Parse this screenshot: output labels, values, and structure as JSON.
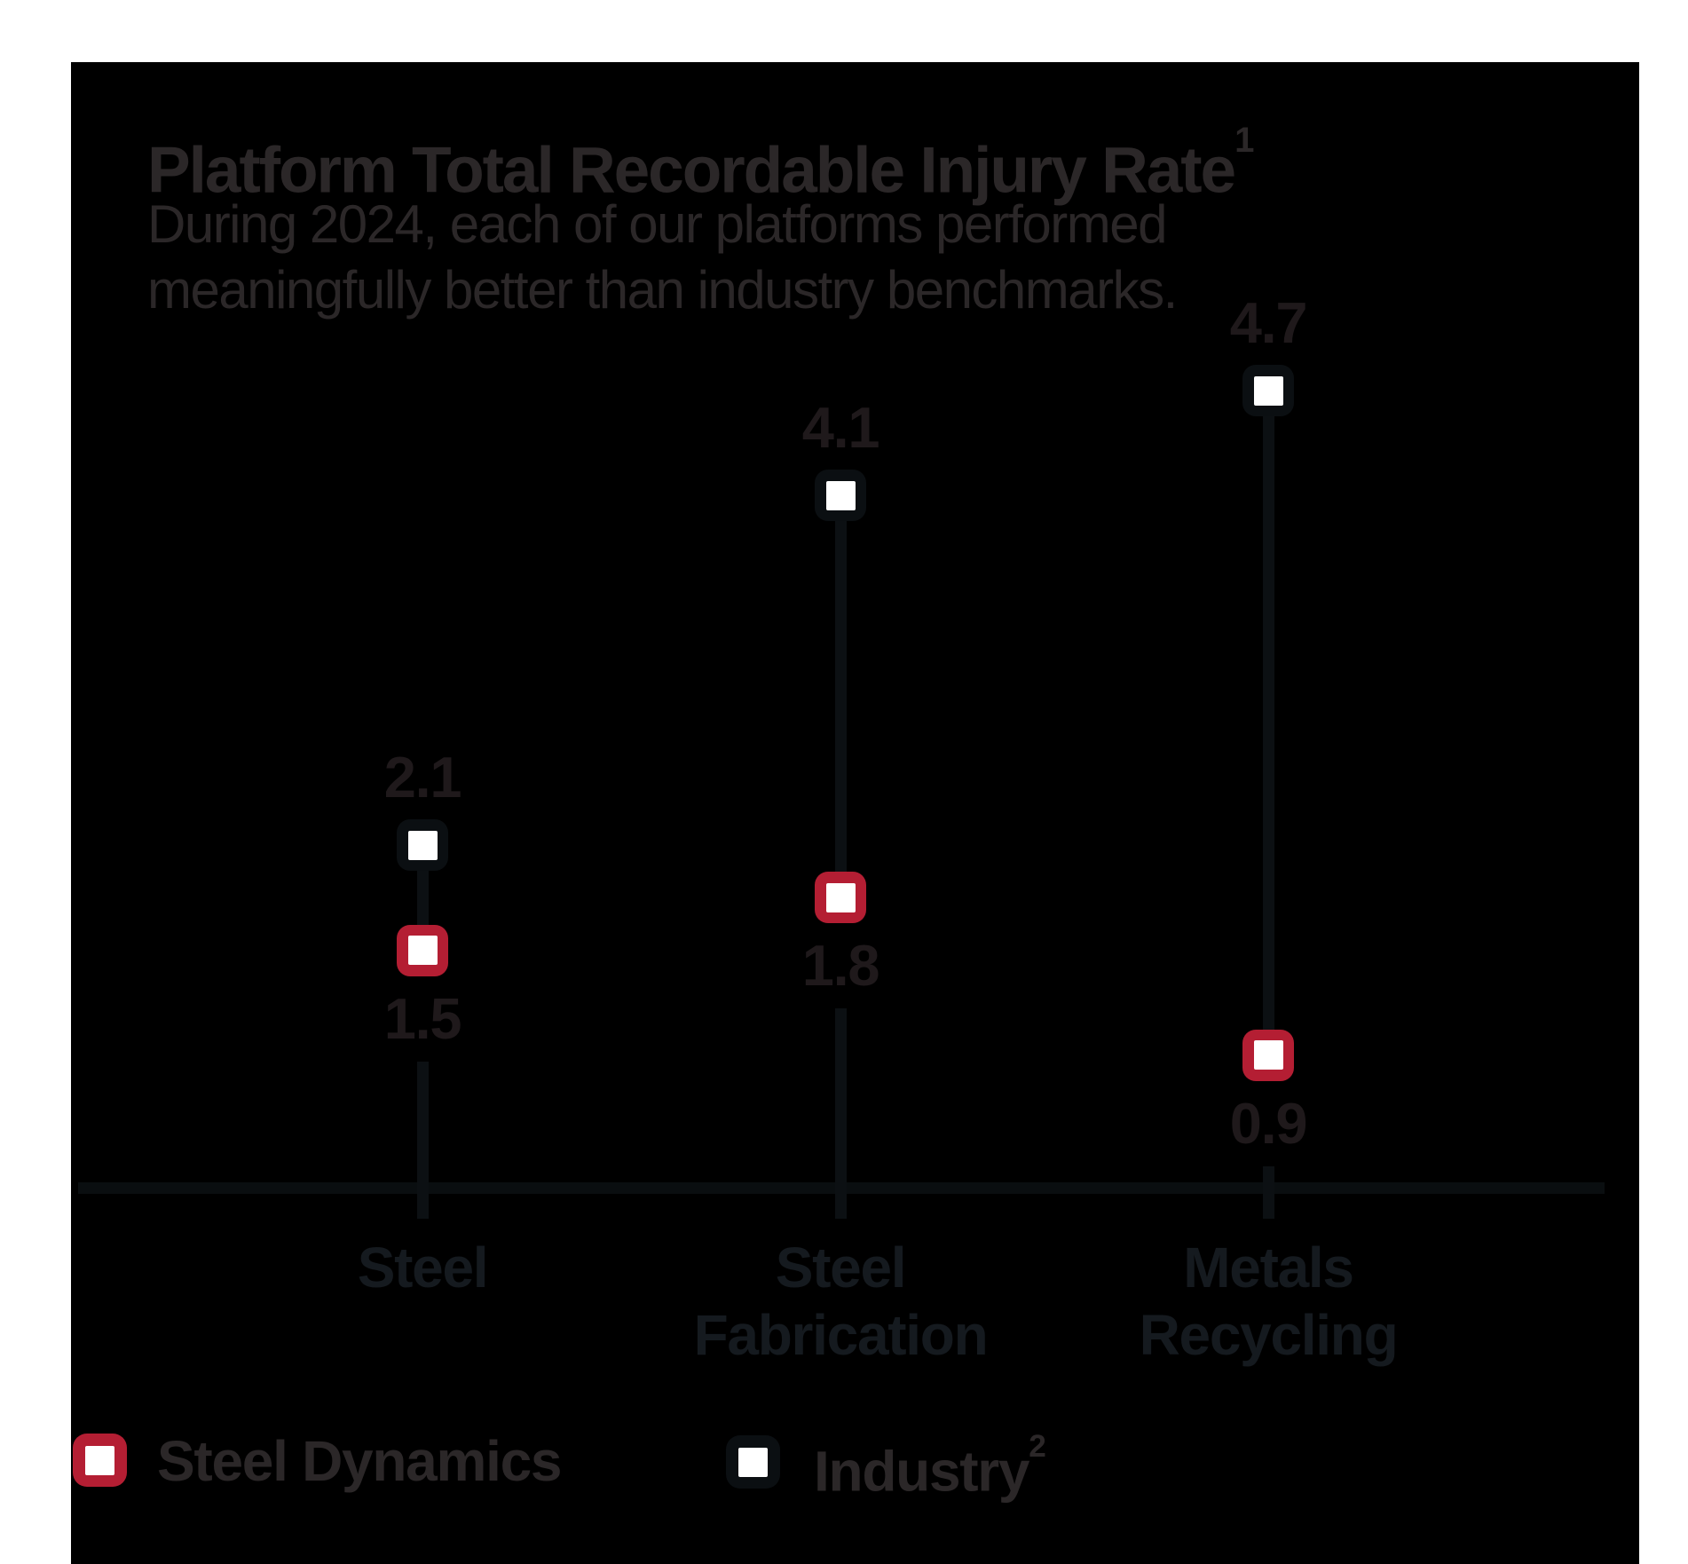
{
  "header": {
    "title": "Platform Total Recordable Injury Rate",
    "title_sup": "1",
    "subtitle": "During 2024, each of our platforms performed\nmeaningfully better than industry benchmarks."
  },
  "legend": {
    "steel_dynamics_label": "Steel Dynamics",
    "industry_label": "Industry",
    "industry_sup": "2"
  },
  "colors": {
    "steel_dynamics_red": "#b41e33",
    "industry_marker_border": "#0b0f12",
    "marker_fill_white": "#ffffff",
    "card_background": "#000000",
    "page_background": "#ffffff"
  },
  "chart_data": {
    "type": "scatter",
    "variant": "dumbbell",
    "title": "Platform Total Recordable Injury Rate¹",
    "subtitle": "During 2024, each of our platforms performed meaningfully better than industry benchmarks.",
    "categories": [
      "Steel",
      "Steel Fabrication",
      "Metals Recycling"
    ],
    "category_label_lines": [
      [
        "Steel"
      ],
      [
        "Steel",
        "Fabrication"
      ],
      [
        "Metals",
        "Recycling"
      ]
    ],
    "series": [
      {
        "name": "Steel Dynamics",
        "values": [
          1.5,
          1.8,
          0.9
        ],
        "marker_border": "#b41e33",
        "marker_fill": "#ffffff"
      },
      {
        "name": "Industry",
        "values": [
          2.1,
          4.1,
          4.7
        ],
        "marker_border": "#0b0f12",
        "marker_fill": "#ffffff"
      }
    ],
    "value_label_format": "0.0",
    "xlabel": "",
    "ylabel": "",
    "ylim": [
      0,
      5
    ],
    "grid": false,
    "legend_position": "bottom"
  }
}
